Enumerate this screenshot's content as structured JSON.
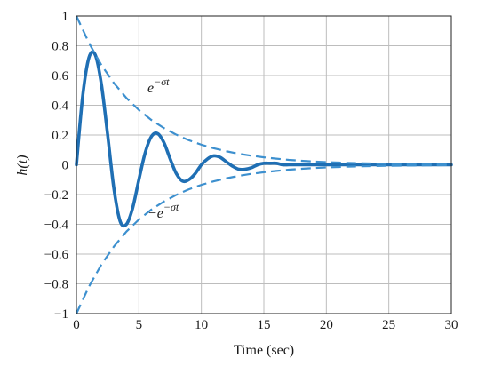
{
  "chart_data": {
    "type": "line",
    "title": "",
    "xlabel": "Time (sec)",
    "ylabel": "h(t)",
    "xlim": [
      0,
      30
    ],
    "ylim": [
      -1,
      1
    ],
    "grid": true,
    "x_ticks": [
      0,
      5,
      10,
      15,
      20,
      25,
      30
    ],
    "y_ticks": [
      -1,
      -0.8,
      -0.6,
      -0.4,
      -0.2,
      0,
      0.2,
      0.4,
      0.6,
      0.8,
      1
    ],
    "x_tick_labels": [
      "0",
      "5",
      "10",
      "15",
      "20",
      "25",
      "30"
    ],
    "y_tick_labels": [
      "−1",
      "−0.8",
      "−0.6",
      "−0.4",
      "−0.2",
      "0",
      "0.2",
      "0.4",
      "0.6",
      "0.8",
      "1"
    ],
    "colors": {
      "series": "#1f6fb4",
      "envelope": "#3d90cf",
      "grid": "#bdbdbd"
    },
    "series": [
      {
        "style": "solid",
        "x": [
          0,
          0.5,
          1,
          1.5,
          2,
          2.5,
          3,
          3.5,
          4,
          4.5,
          5,
          5.5,
          6,
          6.5,
          7,
          7.5,
          8,
          8.5,
          9,
          9.5,
          10,
          10.5,
          11,
          11.5,
          12,
          12.5,
          13,
          13.5,
          14,
          14.5,
          15,
          15.5,
          16,
          16.5,
          17,
          17.5,
          18,
          18.5,
          19,
          19.5,
          20,
          20.5,
          21,
          21.5,
          22,
          22.5,
          23,
          23.5,
          24,
          24.5,
          25,
          25.5,
          26,
          26.5,
          27,
          27.5,
          28,
          28.5,
          29,
          29.5,
          30
        ],
        "y": [
          0,
          0.46,
          0.72,
          0.74,
          0.54,
          0.2,
          -0.16,
          -0.38,
          -0.4,
          -0.29,
          -0.1,
          0.08,
          0.19,
          0.21,
          0.15,
          0.04,
          -0.06,
          -0.11,
          -0.1,
          -0.06,
          0.0,
          0.04,
          0.06,
          0.05,
          0.02,
          -0.01,
          -0.03,
          -0.03,
          -0.02,
          0.0,
          0.01,
          0.01,
          0.01,
          0.0,
          0.0,
          0.0,
          0.0,
          0.0,
          0.0,
          0.0,
          0.0,
          0.0,
          0.0,
          0.0,
          0.0,
          0.0,
          0.0,
          0.0,
          0.0,
          0.0,
          0.0,
          0.0,
          0.0,
          0.0,
          0.0,
          0.0,
          0.0,
          0.0,
          0.0,
          0.0,
          0.0
        ]
      },
      {
        "style": "dashed",
        "x": [
          0,
          1,
          2,
          3,
          4,
          5,
          6,
          7,
          8,
          9,
          10,
          11,
          12,
          13,
          14,
          15,
          16,
          17,
          18,
          19,
          20,
          21,
          22,
          23,
          24,
          25,
          26,
          27,
          28,
          29,
          30
        ],
        "y": [
          1.0,
          0.819,
          0.67,
          0.549,
          0.449,
          0.368,
          0.301,
          0.247,
          0.202,
          0.165,
          0.135,
          0.111,
          0.091,
          0.074,
          0.061,
          0.05,
          0.041,
          0.033,
          0.027,
          0.022,
          0.018,
          0.015,
          0.012,
          0.01,
          0.008,
          0.007,
          0.006,
          0.005,
          0.004,
          0.003,
          0.002
        ]
      },
      {
        "style": "dashed",
        "x": [
          0,
          1,
          2,
          3,
          4,
          5,
          6,
          7,
          8,
          9,
          10,
          11,
          12,
          13,
          14,
          15,
          16,
          17,
          18,
          19,
          20,
          21,
          22,
          23,
          24,
          25,
          26,
          27,
          28,
          29,
          30
        ],
        "y": [
          -1.0,
          -0.819,
          -0.67,
          -0.549,
          -0.449,
          -0.368,
          -0.301,
          -0.247,
          -0.202,
          -0.165,
          -0.135,
          -0.111,
          -0.091,
          -0.074,
          -0.061,
          -0.05,
          -0.041,
          -0.033,
          -0.027,
          -0.022,
          -0.018,
          -0.015,
          -0.012,
          -0.01,
          -0.008,
          -0.007,
          -0.006,
          -0.005,
          -0.004,
          -0.003,
          -0.002
        ]
      }
    ],
    "annotations": [
      {
        "base": "e",
        "exponent": "−σt"
      },
      {
        "base": "−e",
        "exponent": "−σt"
      }
    ]
  }
}
